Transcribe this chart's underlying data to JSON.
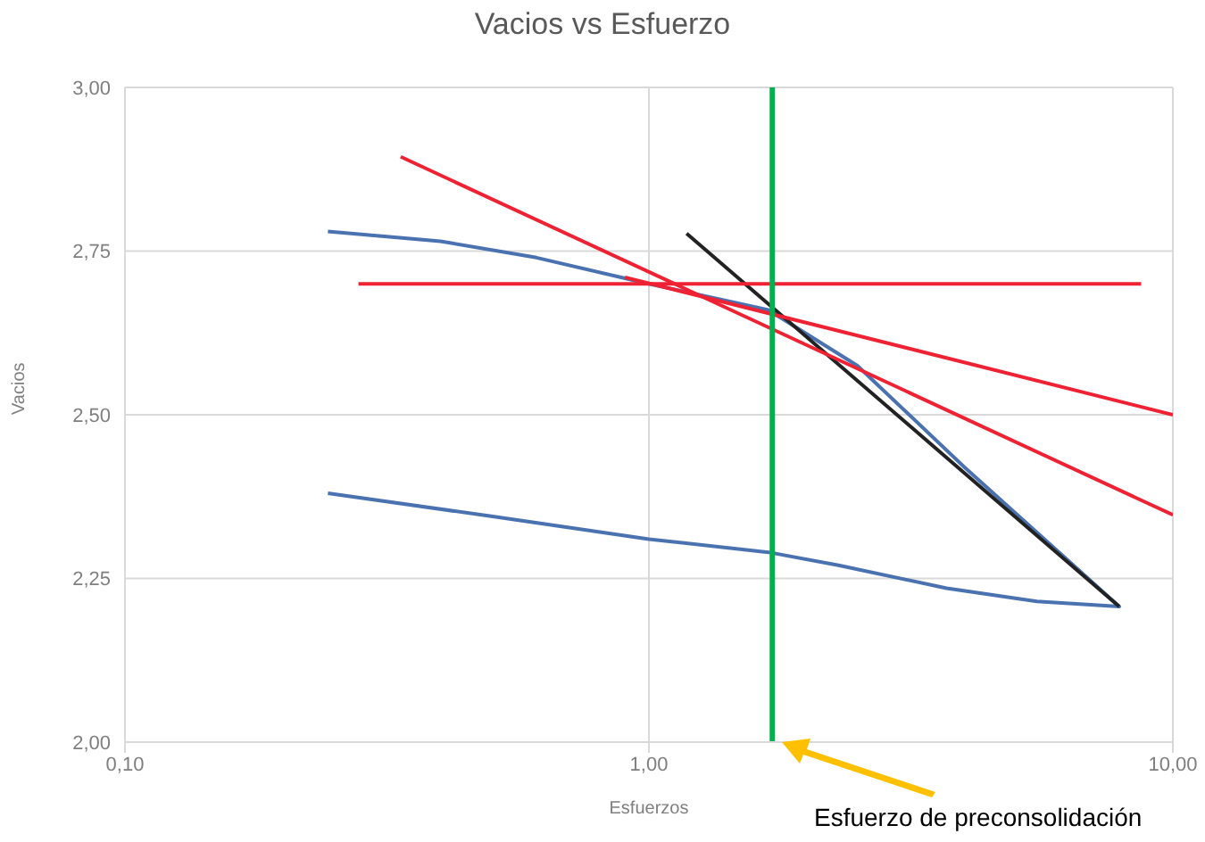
{
  "chart_data": {
    "type": "line",
    "title": "Vacios vs Esfuerzo",
    "xlabel": "Esfuerzos",
    "ylabel": "Vacios",
    "log": "x",
    "grid": true,
    "marker": "none",
    "line_style": "solid",
    "xlim": [
      0.1,
      10
    ],
    "xticks": [
      {
        "value": 0.1,
        "label": "0,10"
      },
      {
        "value": 1,
        "label": "1,00"
      },
      {
        "value": 10,
        "label": "10,00"
      }
    ],
    "ylim": [
      2,
      3
    ],
    "yticks": [
      {
        "value": 2,
        "label": "2,00"
      },
      {
        "value": 2.25,
        "label": "2,25"
      },
      {
        "value": 2.5,
        "label": "2,50"
      },
      {
        "value": 2.75,
        "label": "2,75"
      },
      {
        "value": 3,
        "label": "3,00"
      }
    ],
    "series": [
      {
        "color": "#4a72b0",
        "x": [
          0.244,
          0.4,
          0.61,
          1.0,
          1.69,
          2.5,
          4.0,
          7.9,
          5.5,
          3.7,
          2.3,
          1.69,
          1.0,
          0.5,
          0.244
        ],
        "values": [
          2.78,
          2.765,
          2.74,
          2.7,
          2.66,
          2.575,
          2.42,
          2.207,
          2.215,
          2.235,
          2.27,
          2.29,
          2.31,
          2.345,
          2.38
        ]
      },
      {
        "color": "#222222",
        "x": [
          1.18,
          7.9
        ],
        "values": [
          2.777,
          2.207
        ]
      },
      {
        "color": "#ee2233",
        "x": [
          0.279,
          8.7
        ],
        "values": [
          2.7,
          2.7
        ]
      },
      {
        "color": "#ee2233",
        "x": [
          0.336,
          10
        ],
        "values": [
          2.894,
          2.347
        ]
      },
      {
        "color": "#ee2233",
        "x": [
          0.9,
          10
        ],
        "values": [
          2.71,
          2.5
        ]
      }
    ],
    "ref_lines": [
      {
        "axis": "x",
        "value": 1.72,
        "color": "#00b050"
      }
    ],
    "annotations": [
      "Esfuerzo de preconsolidación"
    ]
  }
}
